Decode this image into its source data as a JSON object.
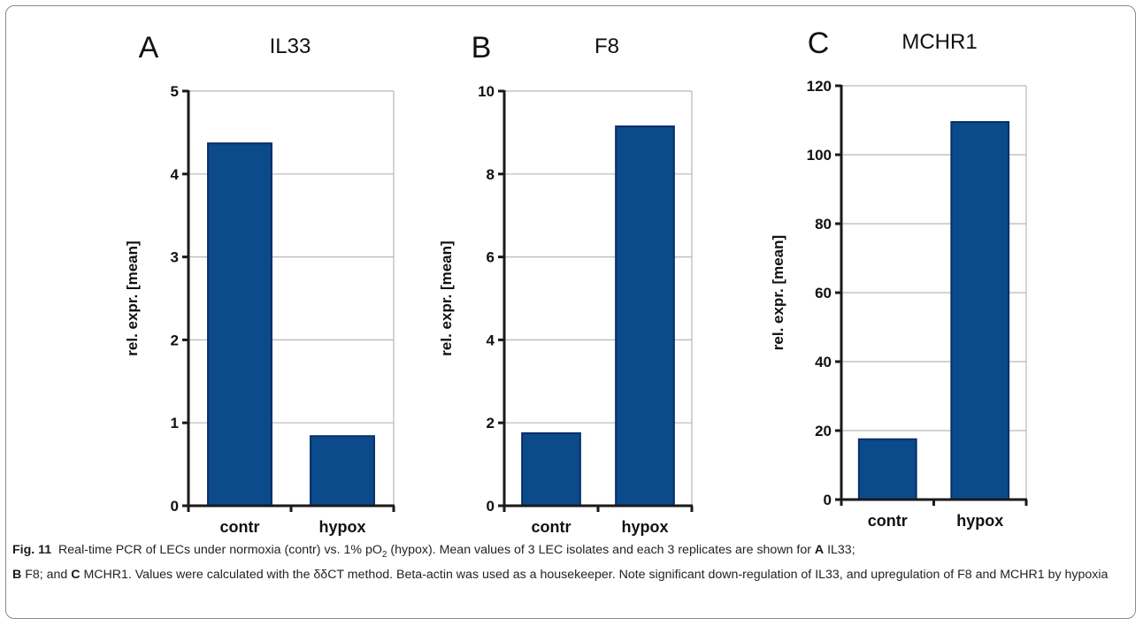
{
  "colors": {
    "bar": "#0b4a8b",
    "bar_stroke": "#0a2f66",
    "grid": "#b8b8b8",
    "axis": "#1a1a1a"
  },
  "chart_data": [
    {
      "type": "bar",
      "panel_letter": "A",
      "title": "IL33",
      "ylabel": "rel. expr. [mean]",
      "categories": [
        "contr",
        "hypox"
      ],
      "values": [
        4.37,
        0.84
      ],
      "ylim": [
        0,
        5
      ],
      "yticks": [
        0,
        1,
        2,
        3,
        4,
        5
      ],
      "grid": true
    },
    {
      "type": "bar",
      "panel_letter": "B",
      "title": "F8",
      "ylabel": "rel. expr. [mean]",
      "categories": [
        "contr",
        "hypox"
      ],
      "values": [
        1.75,
        9.15
      ],
      "ylim": [
        0,
        10
      ],
      "yticks": [
        0,
        2,
        4,
        6,
        8,
        10
      ],
      "grid": true
    },
    {
      "type": "bar",
      "panel_letter": "C",
      "title": "MCHR1",
      "ylabel": "rel. expr. [mean]",
      "categories": [
        "contr",
        "hypox"
      ],
      "values": [
        17.5,
        109.5
      ],
      "ylim": [
        0,
        120
      ],
      "yticks": [
        0,
        20,
        40,
        60,
        80,
        100,
        120
      ],
      "grid": true
    }
  ],
  "caption": {
    "fig_label": "Fig. 11",
    "text_1": "Real-time PCR of LECs under normoxia (contr) vs. 1% pO",
    "sub_2": "2",
    "text_2": " (hypox). Mean values of 3 LEC isolates and each 3 replicates are shown for ",
    "bold_a": "A",
    "text_3": " IL33; ",
    "bold_b": "B",
    "text_4": " F8; and ",
    "bold_c": "C",
    "text_5": " MCHR1. Values were calculated with the δδCT method. Beta-actin was used as a housekeeper. Note significant down-regulation of IL33, and upregulation of F8 and MCHR1 by hypoxia"
  }
}
